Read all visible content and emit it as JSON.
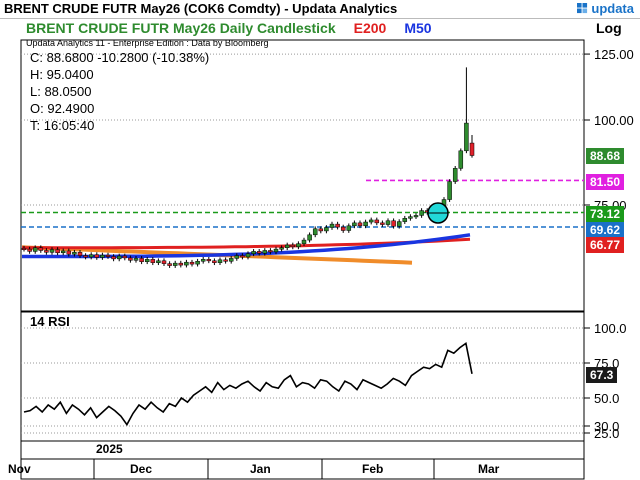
{
  "header": {
    "title": "BRENT CRUDE FUTR  May26 (COK6 Comdty) -   Updata Analytics",
    "brand": "updata"
  },
  "legend": {
    "series": "BRENT CRUDE FUTR  May26 Daily Candlestick",
    "e200": "E200",
    "m50": "M50"
  },
  "info": {
    "subtitle": "Updata Analytics 11 - Enterprise Edition : Data by Bloomberg",
    "close": "C: 88.6800  -10.2800  (-10.38%)",
    "high": "H: 95.0400",
    "low": "L: 88.0500",
    "open": "O: 92.4900",
    "time": "T: 16:05:40"
  },
  "axis": {
    "scale_label": "Log",
    "rsi_label": "14 RSI",
    "year": "2025",
    "months": [
      "Nov",
      "Dec",
      "Jan",
      "Feb",
      "Mar"
    ]
  },
  "tags": {
    "last": "88.68",
    "level_magenta": "81.50",
    "level_green": "73.12",
    "level_blue": "69.62",
    "e200": "66.77",
    "rsi_last": "67.3"
  },
  "colors": {
    "up": "#2e8b2e",
    "down": "#e0212b",
    "e200": "#e02020",
    "m50": "#1a35e0",
    "trend": "#f08c2a",
    "magenta": "#e020e0",
    "green_level": "#1a9a1a",
    "blue_level": "#1a70c8"
  },
  "chart_data": [
    {
      "type": "candlestick",
      "title": "BRENT CRUDE FUTR  May26 Daily Candlestick",
      "scale": "log",
      "y_ticks": [
        75,
        100,
        125
      ],
      "x_ticks": [
        "Nov",
        "Dec",
        "Jan",
        "Feb",
        "Mar"
      ],
      "closes": [
        64.6,
        64.1,
        64.9,
        64.3,
        63.9,
        64.5,
        63.8,
        64.2,
        63.5,
        63.9,
        63.2,
        62.9,
        63.4,
        62.8,
        63.3,
        63.0,
        62.5,
        63.1,
        62.7,
        62.2,
        62.6,
        61.9,
        62.4,
        61.7,
        62.1,
        61.5,
        61.1,
        61.6,
        61.2,
        61.8,
        61.4,
        62.0,
        62.4,
        62.1,
        61.7,
        62.3,
        62.0,
        62.6,
        63.2,
        62.9,
        63.6,
        64.1,
        63.7,
        64.3,
        64.0,
        64.6,
        64.9,
        65.5,
        65.1,
        65.8,
        66.6,
        67.8,
        69.2,
        68.7,
        69.5,
        70.3,
        69.6,
        68.8,
        69.9,
        70.6,
        69.9,
        70.8,
        71.3,
        70.6,
        70.2,
        71.1,
        69.8,
        70.9,
        71.7,
        72.1,
        72.4,
        73.6,
        73.2,
        72.8,
        73.3,
        76.4,
        81.2,
        84.9,
        90.1,
        98.96,
        88.68
      ],
      "last_candle": {
        "open": 92.49,
        "high": 95.04,
        "low": 88.05,
        "close": 88.68
      },
      "high_wick_peak": 119.5,
      "series": [
        {
          "name": "E200",
          "color": "#e02020",
          "start": 64.9,
          "end": 66.77
        },
        {
          "name": "M50",
          "color": "#1a35e0",
          "start": 63.0,
          "end": 67.8
        },
        {
          "name": "trendline",
          "color": "#f08c2a",
          "start": 65.0,
          "end": 61.7
        }
      ],
      "levels": [
        {
          "value": 81.5,
          "color": "#e020e0",
          "label": "81.50"
        },
        {
          "value": 73.12,
          "color": "#1a9a1a",
          "label": "73.12"
        },
        {
          "value": 69.62,
          "color": "#1a70c8",
          "label": "69.62"
        }
      ],
      "last_value": 88.68
    },
    {
      "type": "line",
      "title": "14 RSI",
      "y_ticks": [
        25,
        30,
        50,
        75,
        100
      ],
      "values": [
        40,
        41,
        44,
        40,
        45,
        42,
        47,
        39,
        45,
        42,
        38,
        43,
        36,
        40,
        44,
        41,
        37,
        31,
        39,
        45,
        42,
        47,
        43,
        40,
        46,
        44,
        50,
        47,
        52,
        55,
        58,
        54,
        61,
        56,
        59,
        57,
        60,
        62,
        58,
        55,
        61,
        58,
        57,
        63,
        66,
        58,
        61,
        60,
        57,
        63,
        62,
        58,
        55,
        62,
        60,
        56,
        63,
        61,
        59,
        57,
        60,
        64,
        62,
        59,
        66,
        69,
        72,
        71,
        74,
        72,
        84,
        82,
        86,
        89,
        67.3
      ],
      "last_value": 67.3
    }
  ]
}
